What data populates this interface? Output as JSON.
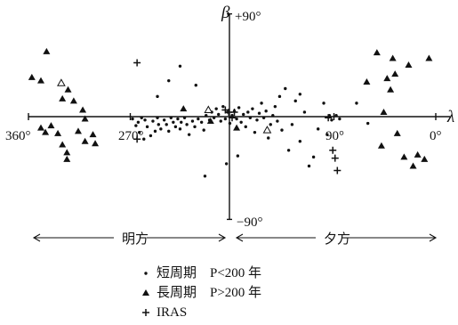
{
  "chart_data": {
    "type": "scatter",
    "axes": {
      "lambda_symbol": "λ",
      "beta_symbol": "β",
      "beta_top_label": "+90°",
      "beta_bottom_label": "−90°",
      "lambda_ticks": [
        "360°",
        "270°",
        "90°",
        "0°"
      ],
      "lambda_range": [
        360,
        0
      ],
      "beta_range": [
        -90,
        90
      ],
      "grid": false
    },
    "direction_labels": {
      "left": "明方",
      "right": "夕方"
    },
    "legend": {
      "placement": "bottom-center",
      "rows": [
        {
          "name": "短周期",
          "criterion": "P<200 年",
          "marker": "dot"
        },
        {
          "name": "長周期",
          "criterion": "P>200 年",
          "marker": "triangle"
        },
        {
          "name": "IRAS",
          "criterion": "",
          "marker": "cross"
        }
      ]
    },
    "series": [
      {
        "name": "短周期",
        "marker": "dot",
        "points": [
          [
            263,
            -5
          ],
          [
            257,
            -3
          ],
          [
            260,
            -1
          ],
          [
            255,
            -9
          ],
          [
            250,
            -4
          ],
          [
            248,
            -13
          ],
          [
            252,
            -17
          ],
          [
            258,
            -20
          ],
          [
            262,
            -14
          ],
          [
            265,
            -8
          ],
          [
            268,
            -2
          ],
          [
            246,
            -1
          ],
          [
            245,
            -7
          ],
          [
            243,
            -11
          ],
          [
            240,
            -3
          ],
          [
            238,
            -7
          ],
          [
            236,
            -13
          ],
          [
            234,
            -1
          ],
          [
            232,
            -5
          ],
          [
            230,
            -9
          ],
          [
            228,
            -2
          ],
          [
            226,
            -11
          ],
          [
            225,
            -5
          ],
          [
            222,
            -1
          ],
          [
            220,
            -7
          ],
          [
            218,
            -16
          ],
          [
            215,
            -4
          ],
          [
            213,
            -9
          ],
          [
            210,
            -2
          ],
          [
            207,
            -5
          ],
          [
            205,
            -12
          ],
          [
            203,
            1
          ],
          [
            200,
            -3
          ],
          [
            198,
            4
          ],
          [
            196,
            -1
          ],
          [
            194,
            7
          ],
          [
            192,
            2
          ],
          [
            190,
            -4
          ],
          [
            188,
            9
          ],
          [
            186,
            -2
          ],
          [
            184,
            4
          ],
          [
            182,
            -6
          ],
          [
            180,
            1
          ],
          [
            178,
            5
          ],
          [
            176,
            -2
          ],
          [
            174,
            8
          ],
          [
            172,
            -5
          ],
          [
            170,
            2
          ],
          [
            168,
            -9
          ],
          [
            166,
            4
          ],
          [
            164,
            -1
          ],
          [
            162,
            7
          ],
          [
            160,
            -14
          ],
          [
            158,
            -3
          ],
          [
            156,
            3
          ],
          [
            154,
            12
          ],
          [
            152,
            -1
          ],
          [
            150,
            5
          ],
          [
            148,
            -19
          ],
          [
            146,
            -7
          ],
          [
            144,
            1
          ],
          [
            142,
            9
          ],
          [
            140,
            -4
          ],
          [
            138,
            18
          ],
          [
            136,
            -12
          ],
          [
            133,
            25
          ],
          [
            130,
            -30
          ],
          [
            127,
            -7
          ],
          [
            124,
            14
          ],
          [
            120,
            -22
          ],
          [
            116,
            4
          ],
          [
            112,
            -44
          ],
          [
            108,
            -36
          ],
          [
            104,
            -11
          ],
          [
            99,
            12
          ],
          [
            96,
            -16
          ],
          [
            94,
            1
          ],
          [
            212,
            28
          ],
          [
            226,
            45
          ],
          [
            236,
            32
          ],
          [
            246,
            18
          ],
          [
            120,
            20
          ],
          [
            92,
            -3
          ],
          [
            88,
            1
          ],
          [
            85,
            -2
          ],
          [
            70,
            12
          ],
          [
            60,
            -6
          ],
          [
            175,
            -35
          ],
          [
            185,
            -42
          ],
          [
            204,
            -53
          ]
        ]
      },
      {
        "name": "長周期",
        "marker": "triangle",
        "points": [
          [
            344,
            58
          ],
          [
            357,
            35
          ],
          [
            349,
            32
          ],
          [
            349,
            -10
          ],
          [
            345,
            -14
          ],
          [
            340,
            -8
          ],
          [
            334,
            -15
          ],
          [
            330,
            16
          ],
          [
            325,
            24
          ],
          [
            320,
            14
          ],
          [
            316,
            -13
          ],
          [
            312,
            6
          ],
          [
            310,
            -2
          ],
          [
            303,
            -16
          ],
          [
            301,
            -24
          ],
          [
            310,
            -22
          ],
          [
            326,
            -38
          ],
          [
            326,
            -32
          ],
          [
            330,
            -25
          ],
          [
            52,
            57
          ],
          [
            38,
            52
          ],
          [
            24,
            46
          ],
          [
            6,
            52
          ],
          [
            36,
            38
          ],
          [
            34,
            -15
          ],
          [
            16,
            -34
          ],
          [
            10,
            -38
          ],
          [
            46,
            4
          ],
          [
            28,
            -36
          ],
          [
            48,
            -26
          ],
          [
            61,
            31
          ],
          [
            43,
            34
          ],
          [
            20,
            -44
          ],
          [
            40,
            24
          ],
          [
            199,
            -4
          ],
          [
            176,
            -10
          ],
          [
            223,
            7
          ]
        ]
      },
      {
        "name": "IRAS",
        "marker": "cross",
        "points": [
          [
            264,
            48
          ],
          [
            264,
            -20
          ],
          [
            95,
            -1
          ],
          [
            91,
            -30
          ],
          [
            89,
            -37
          ],
          [
            87,
            -48
          ],
          [
            183,
            4
          ],
          [
            180,
            -1
          ],
          [
            178,
            4
          ],
          [
            186,
            6
          ]
        ]
      },
      {
        "name": "",
        "marker": "open-triangle",
        "points": [
          [
            331,
            30
          ],
          [
            201,
            6
          ],
          [
            149,
            -12
          ]
        ]
      }
    ]
  }
}
